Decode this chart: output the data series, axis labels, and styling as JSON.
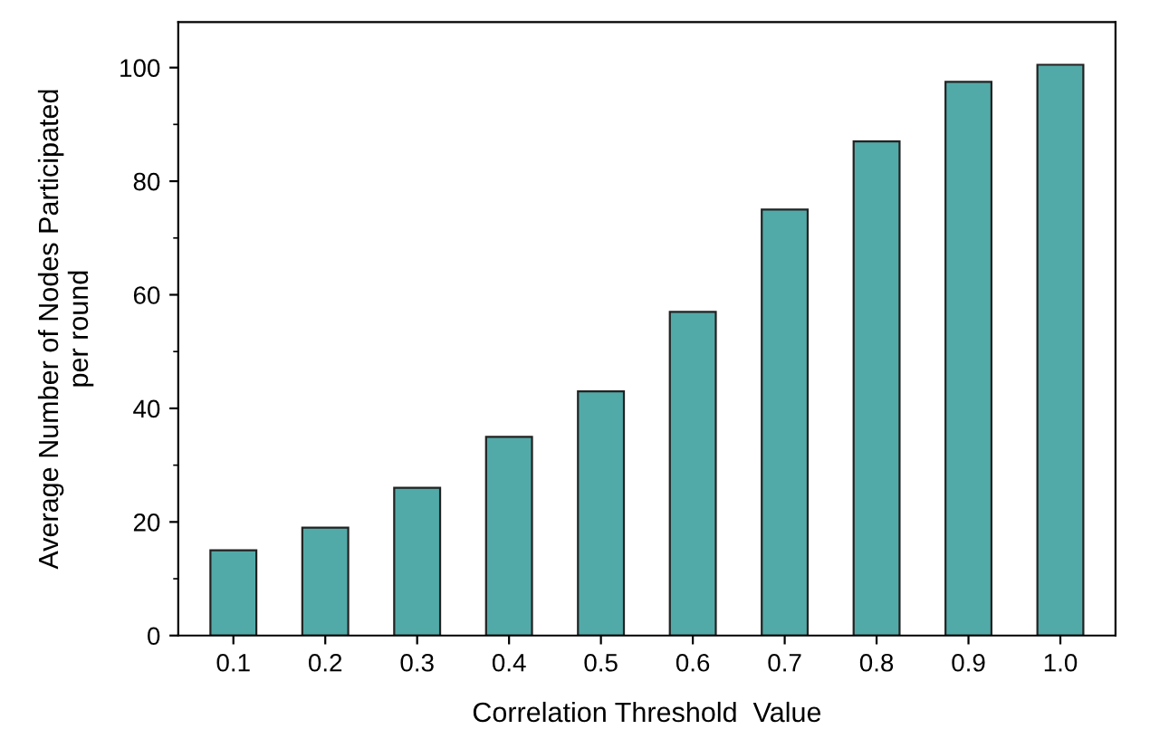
{
  "chart_data": {
    "type": "bar",
    "xlabel": "Correlation Threshold  Value",
    "ylabel": "Average Number of Nodes Participated\nper round",
    "categories": [
      "0.1",
      "0.2",
      "0.3",
      "0.4",
      "0.5",
      "0.6",
      "0.7",
      "0.8",
      "0.9",
      "1.0"
    ],
    "values": [
      15,
      19,
      26,
      35,
      43,
      57,
      75,
      87,
      97.5,
      100.5
    ],
    "color": "#52aaa8",
    "ylim": [
      0,
      108
    ],
    "yticks": [
      0,
      20,
      40,
      60,
      80,
      100
    ],
    "grid": false
  }
}
